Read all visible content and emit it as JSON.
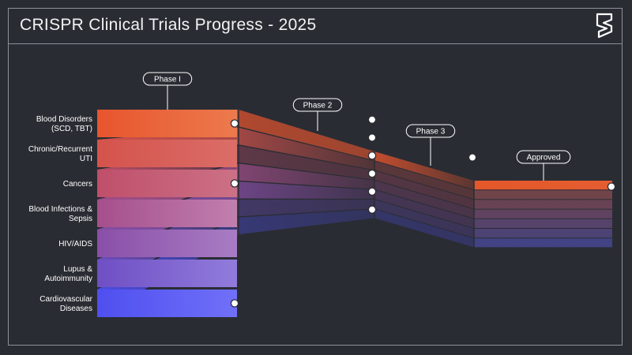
{
  "title": "CRISPR Clinical Trials Progress - 2025",
  "logo": {
    "icon": "brand-logo-icon"
  },
  "chart_data": {
    "type": "funnel",
    "title": "CRISPR Clinical Trials Progress - 2025",
    "stages": [
      "Phase I",
      "Phase 2",
      "Phase 3",
      "Approved"
    ],
    "categories": [
      {
        "lines": [
          "Blood Disorders",
          "(SCD, TBT)"
        ],
        "color_start": "#e8552d",
        "color_end": "#ec7a4d"
      },
      {
        "lines": [
          "Chronic/Recurrent",
          "UTI"
        ],
        "color_start": "#d4534c",
        "color_end": "#db6d68"
      },
      {
        "lines": [
          "Cancers"
        ],
        "color_start": "#bf4f6a",
        "color_end": "#cc7186"
      },
      {
        "lines": [
          "Blood Infections &",
          "Sepsis"
        ],
        "color_start": "#a54f8c",
        "color_end": "#c17fae"
      },
      {
        "lines": [
          "HIV/AIDS"
        ],
        "color_start": "#8a4fa8",
        "color_end": "#a87cc4"
      },
      {
        "lines": [
          "Lupus &",
          "Autoimmunity"
        ],
        "color_start": "#6f4fc4",
        "color_end": "#917cdc"
      },
      {
        "lines": [
          "Cardiovascular",
          "Diseases"
        ],
        "color_start": "#4f4ff0",
        "color_end": "#7070f8"
      }
    ],
    "stage_presence": [
      [
        1,
        1,
        1,
        1
      ],
      [
        1,
        1,
        0,
        0
      ],
      [
        1,
        0,
        0,
        0
      ],
      [
        1,
        1,
        0,
        0
      ],
      [
        1,
        1,
        0,
        0
      ],
      [
        1,
        0,
        0,
        0
      ],
      [
        1,
        0,
        0,
        0
      ]
    ]
  }
}
